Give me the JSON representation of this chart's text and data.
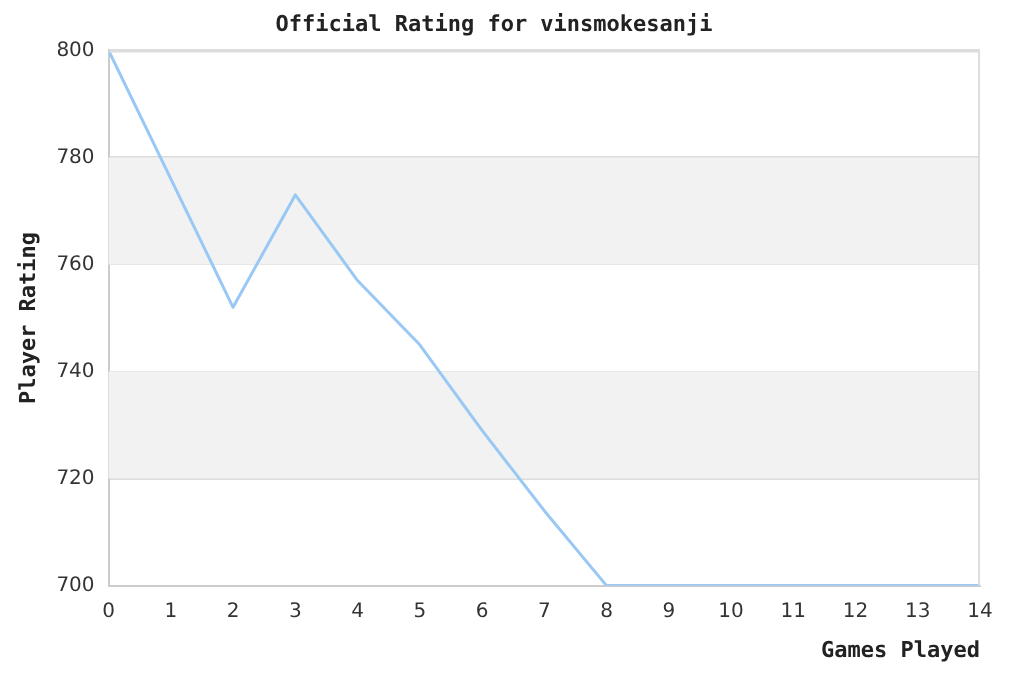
{
  "chart_data": {
    "type": "line",
    "title": "Official Rating for vinsmokesanji",
    "xlabel": "Games Played",
    "ylabel": "Player Rating",
    "x": [
      0,
      1,
      2,
      3,
      4,
      5,
      6,
      7,
      8,
      9,
      10,
      11,
      12,
      13,
      14
    ],
    "series": [
      {
        "color": "#99c8f5",
        "values": [
          800,
          776,
          752,
          773,
          757,
          745,
          729,
          714,
          700,
          700,
          700,
          700,
          700,
          700,
          700
        ]
      }
    ],
    "xlim": [
      0,
      14
    ],
    "xticks": [
      0,
      1,
      2,
      3,
      4,
      5,
      6,
      7,
      8,
      9,
      10,
      11,
      12,
      13,
      14
    ],
    "ylim": [
      700,
      800
    ],
    "yticks": [
      700,
      720,
      740,
      760,
      780,
      800
    ],
    "bands": [
      {
        "axis": "y",
        "from": 720,
        "to": 740,
        "color": "#f2f2f2"
      },
      {
        "axis": "y",
        "from": 760,
        "to": 780,
        "color": "#f2f2f2"
      }
    ],
    "grid": "y",
    "legend": false,
    "marker": "none",
    "line_style": "solid"
  }
}
